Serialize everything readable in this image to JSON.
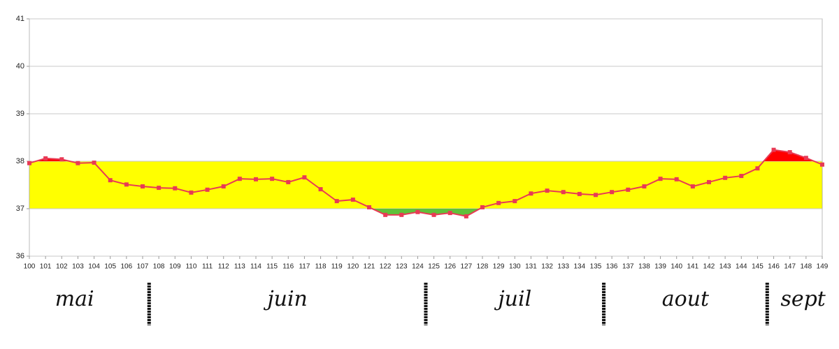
{
  "chart_data": {
    "type": "line",
    "x": [
      100,
      101,
      102,
      103,
      104,
      105,
      106,
      107,
      108,
      109,
      110,
      111,
      112,
      113,
      114,
      115,
      116,
      117,
      118,
      119,
      120,
      121,
      122,
      123,
      124,
      125,
      126,
      127,
      128,
      129,
      130,
      131,
      132,
      133,
      134,
      135,
      136,
      137,
      138,
      139,
      140,
      141,
      142,
      143,
      144,
      145,
      146,
      147,
      148,
      149
    ],
    "series": [
      {
        "color": "#e83a55",
        "values": [
          37.96,
          38.06,
          38.04,
          37.96,
          37.97,
          37.6,
          37.51,
          37.47,
          37.44,
          37.43,
          37.34,
          37.4,
          37.47,
          37.63,
          37.62,
          37.63,
          37.56,
          37.66,
          37.41,
          37.16,
          37.19,
          37.03,
          36.87,
          36.87,
          36.93,
          36.87,
          36.91,
          36.84,
          37.03,
          37.12,
          37.16,
          37.32,
          37.38,
          37.35,
          37.31,
          37.29,
          37.35,
          37.4,
          37.47,
          37.63,
          37.62,
          37.47,
          37.56,
          37.65,
          37.69,
          37.85,
          38.24,
          38.19,
          38.07,
          37.93
        ]
      }
    ],
    "xlim": [
      100,
      149
    ],
    "ylim": [
      36,
      41
    ],
    "yticks": [
      36,
      37,
      38,
      39,
      40,
      41
    ],
    "grid": true,
    "band": {
      "low": 37,
      "high": 38,
      "color": "#ffff00",
      "below_color": "#5fc13a",
      "above_color": "#ff0000"
    },
    "months": [
      "mai",
      "juin",
      "juil",
      "aout",
      "sept"
    ],
    "month_boundaries": [
      107.4,
      124.5,
      135.5,
      145.6
    ]
  }
}
